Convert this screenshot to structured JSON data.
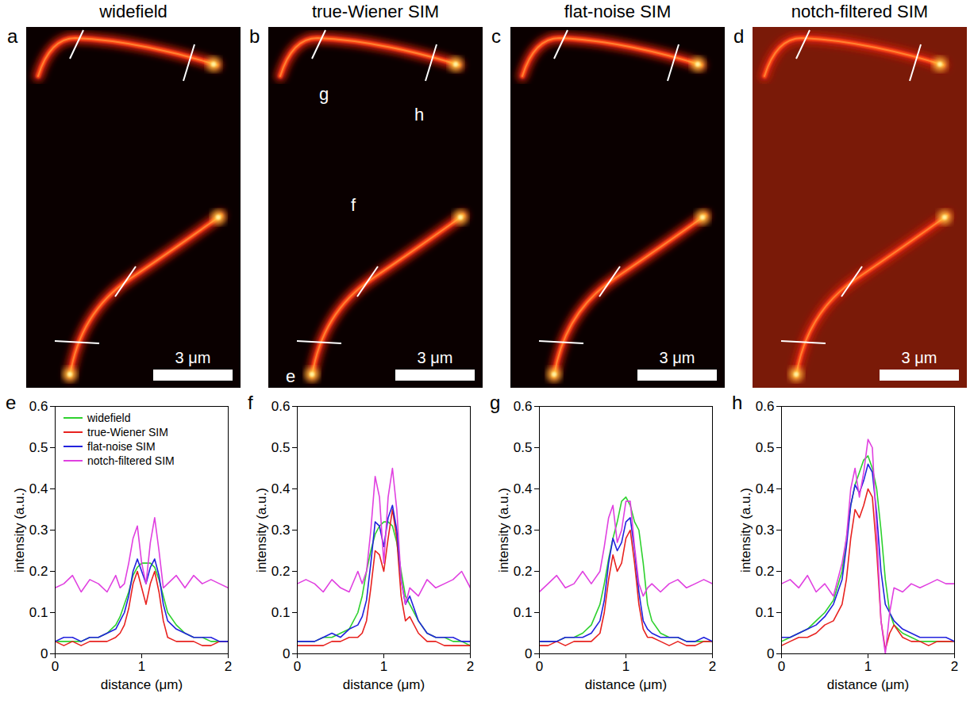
{
  "chart_data": [
    {
      "type": "image",
      "panel": "a",
      "title": "widefield",
      "scale_bar": "3 μm",
      "color": "#0a0000"
    },
    {
      "type": "image",
      "panel": "b",
      "title": "true-Wiener SIM",
      "scale_bar": "3 μm",
      "color": "#0a0000",
      "line_labels": [
        "g",
        "h",
        "f",
        "e"
      ]
    },
    {
      "type": "image",
      "panel": "c",
      "title": "flat-noise SIM",
      "scale_bar": "3 μm",
      "color": "#0a0000"
    },
    {
      "type": "image",
      "panel": "d",
      "title": "notch-filtered SIM",
      "scale_bar": "3 μm",
      "color": "#7a1a08"
    },
    {
      "type": "line",
      "panel": "e",
      "x_label": "distance (μm)",
      "y_label": "intensity (a.u.)",
      "xlim": [
        0,
        2
      ],
      "ylim": [
        0,
        0.6
      ],
      "xticks": [
        0,
        1,
        2
      ],
      "yticks": [
        0,
        0.1,
        0.2,
        0.3,
        0.4,
        0.5,
        0.6
      ],
      "legend": "upper left",
      "x": [
        0,
        0.1,
        0.2,
        0.3,
        0.4,
        0.5,
        0.6,
        0.7,
        0.75,
        0.8,
        0.85,
        0.9,
        0.95,
        1.0,
        1.05,
        1.1,
        1.15,
        1.2,
        1.25,
        1.3,
        1.4,
        1.5,
        1.6,
        1.7,
        1.8,
        1.9,
        2.0
      ],
      "series": [
        {
          "name": "widefield",
          "color": "#2ed12e",
          "values": [
            0.03,
            0.03,
            0.03,
            0.03,
            0.04,
            0.04,
            0.05,
            0.07,
            0.09,
            0.12,
            0.15,
            0.19,
            0.21,
            0.22,
            0.22,
            0.22,
            0.21,
            0.18,
            0.14,
            0.1,
            0.07,
            0.05,
            0.04,
            0.04,
            0.03,
            0.03,
            0.03
          ]
        },
        {
          "name": "true-Wiener SIM",
          "color": "#e8221f",
          "values": [
            0.03,
            0.02,
            0.03,
            0.02,
            0.03,
            0.03,
            0.03,
            0.04,
            0.05,
            0.07,
            0.11,
            0.17,
            0.2,
            0.16,
            0.12,
            0.17,
            0.2,
            0.15,
            0.08,
            0.04,
            0.03,
            0.03,
            0.03,
            0.02,
            0.02,
            0.03,
            0.03
          ]
        },
        {
          "name": "flat-noise SIM",
          "color": "#2222dd",
          "values": [
            0.03,
            0.04,
            0.04,
            0.03,
            0.04,
            0.04,
            0.05,
            0.06,
            0.08,
            0.1,
            0.14,
            0.2,
            0.23,
            0.2,
            0.17,
            0.21,
            0.23,
            0.19,
            0.12,
            0.08,
            0.06,
            0.05,
            0.04,
            0.04,
            0.04,
            0.03,
            0.03
          ]
        },
        {
          "name": "notch-filtered SIM",
          "color": "#e040e0",
          "values": [
            0.16,
            0.17,
            0.19,
            0.15,
            0.18,
            0.17,
            0.15,
            0.19,
            0.16,
            0.17,
            0.22,
            0.28,
            0.31,
            0.22,
            0.17,
            0.27,
            0.33,
            0.25,
            0.16,
            0.17,
            0.19,
            0.16,
            0.19,
            0.17,
            0.18,
            0.17,
            0.16
          ]
        }
      ]
    },
    {
      "type": "line",
      "panel": "f",
      "x_label": "distance (μm)",
      "y_label": "intensity (a.u.)",
      "xlim": [
        0,
        2
      ],
      "ylim": [
        0,
        0.6
      ],
      "xticks": [
        0,
        1,
        2
      ],
      "yticks": [
        0,
        0.1,
        0.2,
        0.3,
        0.4,
        0.5,
        0.6
      ],
      "x": [
        0,
        0.1,
        0.2,
        0.3,
        0.4,
        0.5,
        0.6,
        0.7,
        0.75,
        0.8,
        0.85,
        0.9,
        0.95,
        1.0,
        1.05,
        1.1,
        1.15,
        1.2,
        1.25,
        1.3,
        1.4,
        1.5,
        1.6,
        1.7,
        1.8,
        1.9,
        2.0
      ],
      "series": [
        {
          "name": "widefield",
          "color": "#2ed12e",
          "values": [
            0.03,
            0.03,
            0.03,
            0.04,
            0.04,
            0.05,
            0.06,
            0.1,
            0.14,
            0.2,
            0.25,
            0.29,
            0.31,
            0.32,
            0.32,
            0.31,
            0.27,
            0.2,
            0.14,
            0.12,
            0.08,
            0.05,
            0.04,
            0.04,
            0.03,
            0.03,
            0.02
          ]
        },
        {
          "name": "true-Wiener SIM",
          "color": "#e8221f",
          "values": [
            0.02,
            0.02,
            0.02,
            0.02,
            0.03,
            0.03,
            0.04,
            0.04,
            0.05,
            0.08,
            0.16,
            0.25,
            0.24,
            0.2,
            0.28,
            0.35,
            0.28,
            0.14,
            0.08,
            0.09,
            0.05,
            0.03,
            0.03,
            0.02,
            0.02,
            0.02,
            0.02
          ]
        },
        {
          "name": "flat-noise SIM",
          "color": "#2222dd",
          "values": [
            0.03,
            0.03,
            0.03,
            0.04,
            0.05,
            0.04,
            0.06,
            0.07,
            0.09,
            0.13,
            0.22,
            0.32,
            0.31,
            0.26,
            0.33,
            0.36,
            0.3,
            0.18,
            0.12,
            0.14,
            0.08,
            0.05,
            0.04,
            0.04,
            0.04,
            0.03,
            0.03
          ]
        },
        {
          "name": "notch-filtered SIM",
          "color": "#e040e0",
          "values": [
            0.17,
            0.18,
            0.17,
            0.15,
            0.18,
            0.16,
            0.15,
            0.2,
            0.17,
            0.2,
            0.3,
            0.43,
            0.38,
            0.22,
            0.38,
            0.45,
            0.35,
            0.18,
            0.12,
            0.16,
            0.14,
            0.18,
            0.16,
            0.17,
            0.18,
            0.2,
            0.16
          ]
        }
      ]
    },
    {
      "type": "line",
      "panel": "g",
      "x_label": "distance (μm)",
      "y_label": "intensity (a.u.)",
      "xlim": [
        0,
        2
      ],
      "ylim": [
        0,
        0.6
      ],
      "xticks": [
        0,
        1,
        2
      ],
      "yticks": [
        0,
        0.1,
        0.2,
        0.3,
        0.4,
        0.5,
        0.6
      ],
      "x": [
        0,
        0.1,
        0.2,
        0.3,
        0.4,
        0.5,
        0.6,
        0.7,
        0.75,
        0.8,
        0.85,
        0.9,
        0.95,
        1.0,
        1.05,
        1.1,
        1.15,
        1.2,
        1.25,
        1.3,
        1.4,
        1.5,
        1.6,
        1.7,
        1.8,
        1.9,
        2.0
      ],
      "series": [
        {
          "name": "widefield",
          "color": "#2ed12e",
          "values": [
            0.03,
            0.03,
            0.03,
            0.04,
            0.04,
            0.05,
            0.07,
            0.12,
            0.17,
            0.23,
            0.28,
            0.32,
            0.37,
            0.38,
            0.36,
            0.32,
            0.3,
            0.22,
            0.12,
            0.08,
            0.05,
            0.04,
            0.04,
            0.03,
            0.03,
            0.03,
            0.03
          ]
        },
        {
          "name": "true-Wiener SIM",
          "color": "#e8221f",
          "values": [
            0.02,
            0.02,
            0.03,
            0.02,
            0.03,
            0.03,
            0.03,
            0.05,
            0.1,
            0.18,
            0.24,
            0.2,
            0.22,
            0.28,
            0.3,
            0.22,
            0.12,
            0.06,
            0.04,
            0.04,
            0.03,
            0.02,
            0.03,
            0.02,
            0.02,
            0.03,
            0.03
          ]
        },
        {
          "name": "flat-noise SIM",
          "color": "#2222dd",
          "values": [
            0.03,
            0.03,
            0.03,
            0.04,
            0.04,
            0.04,
            0.05,
            0.08,
            0.13,
            0.22,
            0.28,
            0.25,
            0.27,
            0.32,
            0.33,
            0.25,
            0.15,
            0.08,
            0.06,
            0.05,
            0.04,
            0.04,
            0.04,
            0.03,
            0.03,
            0.04,
            0.03
          ]
        },
        {
          "name": "notch-filtered SIM",
          "color": "#e040e0",
          "values": [
            0.15,
            0.17,
            0.19,
            0.16,
            0.17,
            0.2,
            0.17,
            0.2,
            0.26,
            0.33,
            0.36,
            0.27,
            0.3,
            0.37,
            0.37,
            0.26,
            0.17,
            0.14,
            0.16,
            0.17,
            0.15,
            0.17,
            0.18,
            0.16,
            0.17,
            0.18,
            0.17
          ]
        }
      ]
    },
    {
      "type": "line",
      "panel": "h",
      "x_label": "distance (μm)",
      "y_label": "intensity (a.u.)",
      "xlim": [
        0,
        2
      ],
      "ylim": [
        0,
        0.6
      ],
      "xticks": [
        0,
        1,
        2
      ],
      "yticks": [
        0,
        0.1,
        0.2,
        0.3,
        0.4,
        0.5,
        0.6
      ],
      "x": [
        0,
        0.1,
        0.2,
        0.3,
        0.4,
        0.5,
        0.6,
        0.7,
        0.75,
        0.8,
        0.85,
        0.9,
        0.95,
        1.0,
        1.05,
        1.1,
        1.15,
        1.2,
        1.25,
        1.3,
        1.4,
        1.5,
        1.6,
        1.7,
        1.8,
        1.9,
        2.0
      ],
      "series": [
        {
          "name": "widefield",
          "color": "#2ed12e",
          "values": [
            0.03,
            0.04,
            0.05,
            0.06,
            0.08,
            0.1,
            0.13,
            0.2,
            0.28,
            0.36,
            0.41,
            0.44,
            0.47,
            0.48,
            0.45,
            0.4,
            0.3,
            0.18,
            0.1,
            0.07,
            0.05,
            0.04,
            0.03,
            0.03,
            0.03,
            0.03,
            0.03
          ]
        },
        {
          "name": "true-Wiener SIM",
          "color": "#e8221f",
          "values": [
            0.02,
            0.03,
            0.04,
            0.04,
            0.05,
            0.07,
            0.08,
            0.12,
            0.18,
            0.28,
            0.35,
            0.33,
            0.36,
            0.4,
            0.38,
            0.25,
            0.08,
            0.01,
            0.05,
            0.07,
            0.04,
            0.03,
            0.03,
            0.02,
            0.03,
            0.03,
            0.03
          ]
        },
        {
          "name": "flat-noise SIM",
          "color": "#2222dd",
          "values": [
            0.04,
            0.04,
            0.05,
            0.06,
            0.07,
            0.09,
            0.12,
            0.18,
            0.26,
            0.36,
            0.41,
            0.39,
            0.42,
            0.46,
            0.44,
            0.34,
            0.2,
            0.12,
            0.1,
            0.08,
            0.06,
            0.05,
            0.04,
            0.04,
            0.04,
            0.04,
            0.03
          ]
        },
        {
          "name": "notch-filtered SIM",
          "color": "#e040e0",
          "values": [
            0.17,
            0.18,
            0.16,
            0.19,
            0.15,
            0.17,
            0.14,
            0.22,
            0.28,
            0.4,
            0.45,
            0.38,
            0.44,
            0.52,
            0.5,
            0.3,
            0.08,
            0.0,
            0.1,
            0.16,
            0.15,
            0.17,
            0.16,
            0.17,
            0.18,
            0.17,
            0.17
          ]
        }
      ]
    }
  ]
}
